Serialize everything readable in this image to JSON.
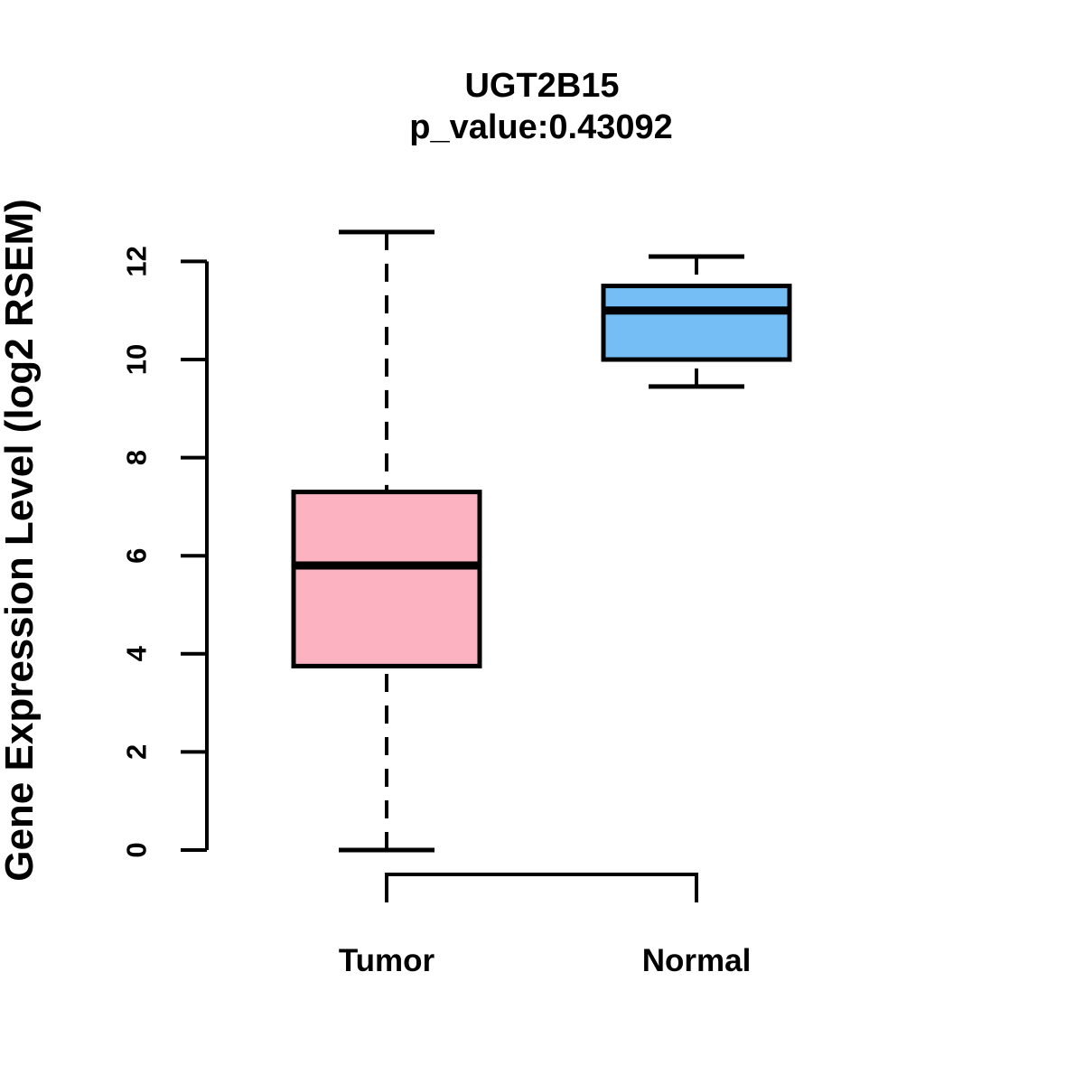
{
  "chart_data": {
    "type": "boxplot",
    "title": "UGT2B15",
    "subtitle": "p_value:0.43092",
    "ylabel": "Gene Expression Level (log2 RSEM)",
    "xlabel": "",
    "categories": [
      "Tumor",
      "Normal"
    ],
    "yticks": [
      0,
      2,
      4,
      6,
      8,
      10,
      12
    ],
    "ylim": [
      0,
      12.6
    ],
    "grid": false,
    "legend": "none",
    "orientation": "vertical",
    "series": [
      {
        "name": "Tumor",
        "fill_color": "#FDB2C2",
        "whisker_low": 0.0,
        "q1": 3.75,
        "median": 5.8,
        "q3": 7.3,
        "whisker_high": 12.6,
        "outliers": []
      },
      {
        "name": "Normal",
        "fill_color": "#74BEF5",
        "whisker_low": 9.45,
        "q1": 10.0,
        "median": 11.0,
        "q3": 11.5,
        "whisker_high": 12.1,
        "outliers": []
      }
    ],
    "stroke_color": "#000000",
    "background_color": "#FFFFFF"
  }
}
